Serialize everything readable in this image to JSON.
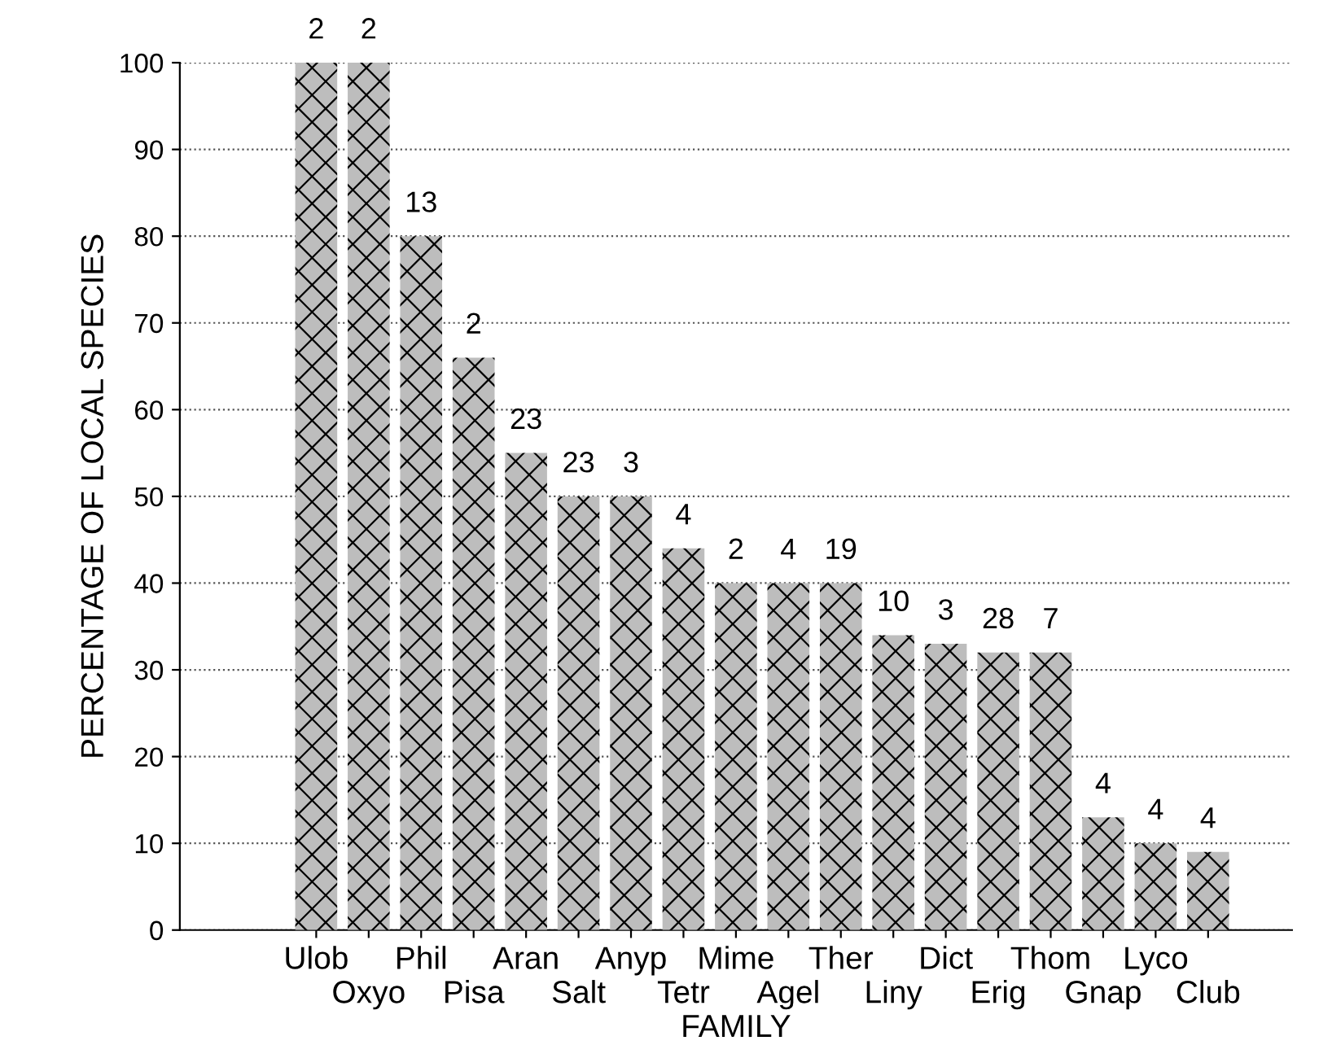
{
  "chart_data": {
    "type": "bar",
    "xlabel": "FAMILY",
    "ylabel": "PERCENTAGE OF LOCAL SPECIES",
    "categories": [
      "Ulob",
      "Oxyo",
      "Phil",
      "Pisa",
      "Aran",
      "Salt",
      "Anyp",
      "Tetr",
      "Mime",
      "Agel",
      "Ther",
      "Liny",
      "Dict",
      "Erig",
      "Thom",
      "Gnap",
      "Lyco",
      "Club"
    ],
    "values": [
      100,
      100,
      80,
      66,
      55,
      50,
      50,
      44,
      40,
      40,
      40,
      34,
      33,
      32,
      32,
      13,
      10,
      9
    ],
    "color": "#bdbdbd",
    "ylim": [
      0,
      100
    ],
    "yticks": [
      0,
      10,
      20,
      30,
      40,
      50,
      60,
      70,
      80,
      90,
      100
    ],
    "grid": "y",
    "annotations": [
      {
        "text": "2",
        "x": "Ulob",
        "y": 100
      },
      {
        "text": "2",
        "x": "Oxyo",
        "y": 100
      },
      {
        "text": "13",
        "x": "Phil",
        "y": 80
      },
      {
        "text": "2",
        "x": "Pisa",
        "y": 66
      },
      {
        "text": "23",
        "x": "Aran",
        "y": 55
      },
      {
        "text": "23",
        "x": "Salt",
        "y": 50
      },
      {
        "text": "3",
        "x": "Anyp",
        "y": 50
      },
      {
        "text": "4",
        "x": "Tetr",
        "y": 44
      },
      {
        "text": "2",
        "x": "Mime",
        "y": 40
      },
      {
        "text": "4",
        "x": "Agel",
        "y": 40
      },
      {
        "text": "19",
        "x": "Ther",
        "y": 40
      },
      {
        "text": "10",
        "x": "Liny",
        "y": 34
      },
      {
        "text": "3",
        "x": "Dict",
        "y": 33
      },
      {
        "text": "28",
        "x": "Erig",
        "y": 32
      },
      {
        "text": "7",
        "x": "Thom",
        "y": 32
      },
      {
        "text": "4",
        "x": "Gnap",
        "y": 13
      },
      {
        "text": "4",
        "x": "Lyco",
        "y": 10
      },
      {
        "text": "4",
        "x": "Club",
        "y": 9
      }
    ]
  }
}
